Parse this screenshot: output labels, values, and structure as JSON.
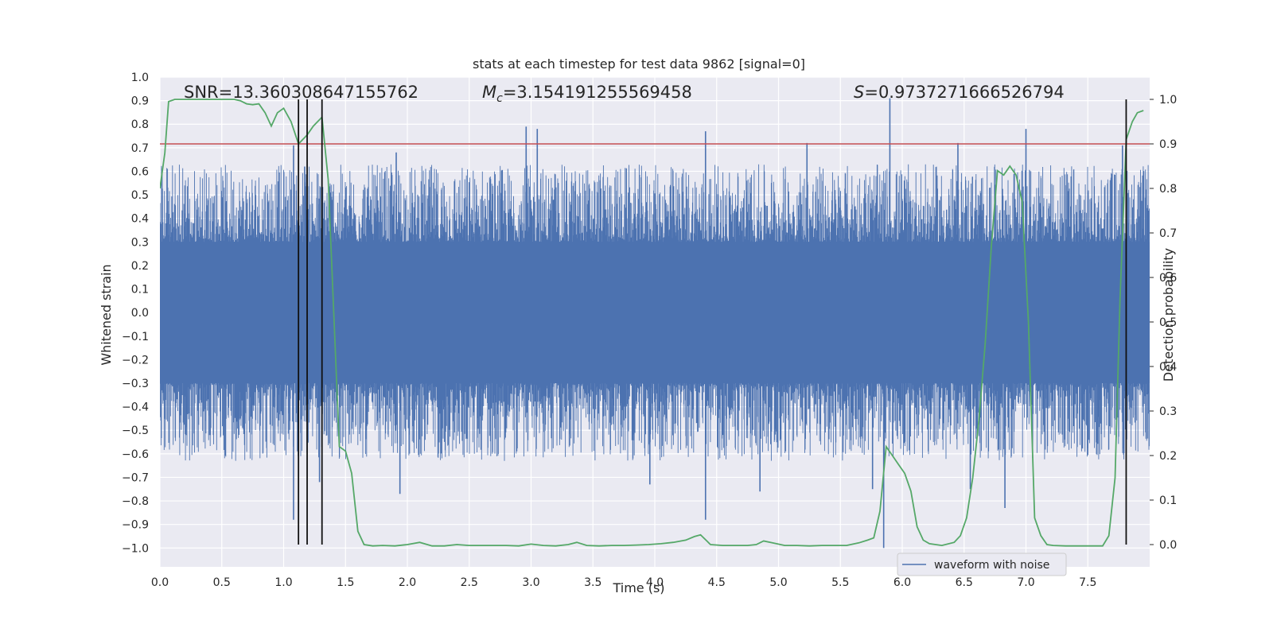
{
  "chart_data": {
    "type": "line",
    "title": "stats at each timestep for test data 9862 [signal=0]",
    "xlabel": "Time (s)",
    "ylabel_left": "Whitened strain",
    "ylabel_right": "Detection probability",
    "xlim": [
      0.0,
      8.0
    ],
    "ylim_left": [
      -1.08,
      1.0
    ],
    "ylim_right": [
      -0.05,
      1.05
    ],
    "xticks": [
      "0.0",
      "0.5",
      "1.0",
      "1.5",
      "2.0",
      "2.5",
      "3.0",
      "3.5",
      "4.0",
      "4.5",
      "5.0",
      "5.5",
      "6.0",
      "6.5",
      "7.0",
      "7.5"
    ],
    "yticks_left": [
      "1.0",
      "0.9",
      "0.8",
      "0.7",
      "0.6",
      "0.5",
      "0.4",
      "0.3",
      "0.2",
      "0.1",
      "0.0",
      "−0.1",
      "−0.2",
      "−0.3",
      "−0.4",
      "−0.5",
      "−0.6",
      "−0.7",
      "−0.8",
      "−0.9",
      "−1.0"
    ],
    "yticks_right": [
      "1.0",
      "0.9",
      "0.8",
      "0.7",
      "0.6",
      "0.5",
      "0.4",
      "0.3",
      "0.2",
      "0.1",
      "0.0"
    ],
    "grid": true,
    "legend": {
      "position": "bottom-right",
      "entries": [
        "waveform with noise"
      ]
    },
    "annotations": {
      "snr": "SNR=13.360308647155762",
      "mc_symbol": "M",
      "mc_sub": "c",
      "mc_value": "=3.154191255569458",
      "s_symbol": "S",
      "s_value": "=0.9737271666526794"
    },
    "threshold_probability": 0.9,
    "vertical_markers": [
      1.12,
      1.19,
      1.31,
      7.81
    ],
    "series": [
      {
        "name": "waveform with noise",
        "axis": "left",
        "color": "#4c72b0",
        "note": "dense whitened strain noise, core band about -0.45 to 0.45",
        "spikes": [
          {
            "x": 1.08,
            "y": 0.71
          },
          {
            "x": 1.08,
            "y": -0.88
          },
          {
            "x": 1.17,
            "y": 0.62
          },
          {
            "x": 1.29,
            "y": -0.72
          },
          {
            "x": 2.96,
            "y": 0.79
          },
          {
            "x": 3.05,
            "y": 0.78
          },
          {
            "x": 4.41,
            "y": 0.77
          },
          {
            "x": 4.41,
            "y": -0.88
          },
          {
            "x": 5.23,
            "y": 0.72
          },
          {
            "x": 5.9,
            "y": 0.91
          },
          {
            "x": 5.85,
            "y": -1.0
          },
          {
            "x": 6.83,
            "y": -0.83
          },
          {
            "x": 7.0,
            "y": 0.78
          },
          {
            "x": 7.78,
            "y": 0.71
          },
          {
            "x": 1.94,
            "y": -0.77
          },
          {
            "x": 3.96,
            "y": -0.73
          },
          {
            "x": 4.85,
            "y": -0.76
          },
          {
            "x": 5.76,
            "y": -0.75
          },
          {
            "x": 6.55,
            "y": -0.75
          },
          {
            "x": 1.91,
            "y": 0.68
          },
          {
            "x": 6.45,
            "y": 0.72
          }
        ]
      },
      {
        "name": "detection probability",
        "axis": "right",
        "color": "#55a868",
        "x": [
          0.0,
          0.04,
          0.07,
          0.12,
          0.2,
          0.3,
          0.4,
          0.5,
          0.6,
          0.65,
          0.7,
          0.75,
          0.8,
          0.85,
          0.9,
          0.95,
          1.0,
          1.06,
          1.12,
          1.19,
          1.24,
          1.31,
          1.36,
          1.45,
          1.5,
          1.55,
          1.6,
          1.65,
          1.72,
          1.8,
          1.9,
          2.0,
          2.1,
          2.2,
          2.3,
          2.4,
          2.5,
          2.6,
          2.7,
          2.8,
          2.9,
          3.0,
          3.1,
          3.2,
          3.3,
          3.37,
          3.45,
          3.55,
          3.65,
          3.75,
          3.85,
          3.95,
          4.05,
          4.15,
          4.25,
          4.32,
          4.37,
          4.45,
          4.55,
          4.65,
          4.75,
          4.82,
          4.88,
          4.95,
          5.05,
          5.15,
          5.25,
          5.35,
          5.45,
          5.55,
          5.65,
          5.72,
          5.77,
          5.82,
          5.87,
          5.92,
          5.97,
          6.02,
          6.07,
          6.12,
          6.17,
          6.22,
          6.32,
          6.42,
          6.47,
          6.52,
          6.57,
          6.62,
          6.67,
          6.72,
          6.77,
          6.82,
          6.87,
          6.92,
          6.97,
          7.02,
          7.07,
          7.12,
          7.17,
          7.22,
          7.32,
          7.42,
          7.52,
          7.62,
          7.67,
          7.72,
          7.76,
          7.81,
          7.86,
          7.9,
          7.95
        ],
        "y": [
          0.8,
          0.88,
          0.995,
          1.0,
          1.0,
          1.0,
          1.0,
          1.0,
          1.0,
          0.997,
          0.99,
          0.988,
          0.99,
          0.97,
          0.94,
          0.97,
          0.98,
          0.95,
          0.9,
          0.92,
          0.94,
          0.96,
          0.82,
          0.22,
          0.21,
          0.16,
          0.03,
          0.0,
          -0.003,
          -0.002,
          -0.003,
          0.0,
          0.005,
          -0.003,
          -0.003,
          0.0,
          -0.002,
          -0.002,
          -0.002,
          -0.002,
          -0.003,
          0.001,
          -0.002,
          -0.003,
          0.0,
          0.005,
          -0.002,
          -0.003,
          -0.002,
          -0.002,
          -0.001,
          0.0,
          0.002,
          0.005,
          0.01,
          0.018,
          0.022,
          0.0,
          -0.002,
          -0.002,
          -0.002,
          0.0,
          0.008,
          0.004,
          -0.002,
          -0.002,
          -0.003,
          -0.002,
          -0.002,
          -0.002,
          0.004,
          0.01,
          0.015,
          0.075,
          0.22,
          0.2,
          0.18,
          0.16,
          0.12,
          0.04,
          0.01,
          0.002,
          -0.002,
          0.005,
          0.02,
          0.06,
          0.15,
          0.28,
          0.45,
          0.67,
          0.84,
          0.83,
          0.85,
          0.83,
          0.77,
          0.5,
          0.06,
          0.02,
          0.0,
          -0.002,
          -0.003,
          -0.003,
          -0.003,
          -0.003,
          0.02,
          0.15,
          0.55,
          0.91,
          0.95,
          0.97,
          0.975
        ]
      }
    ]
  }
}
